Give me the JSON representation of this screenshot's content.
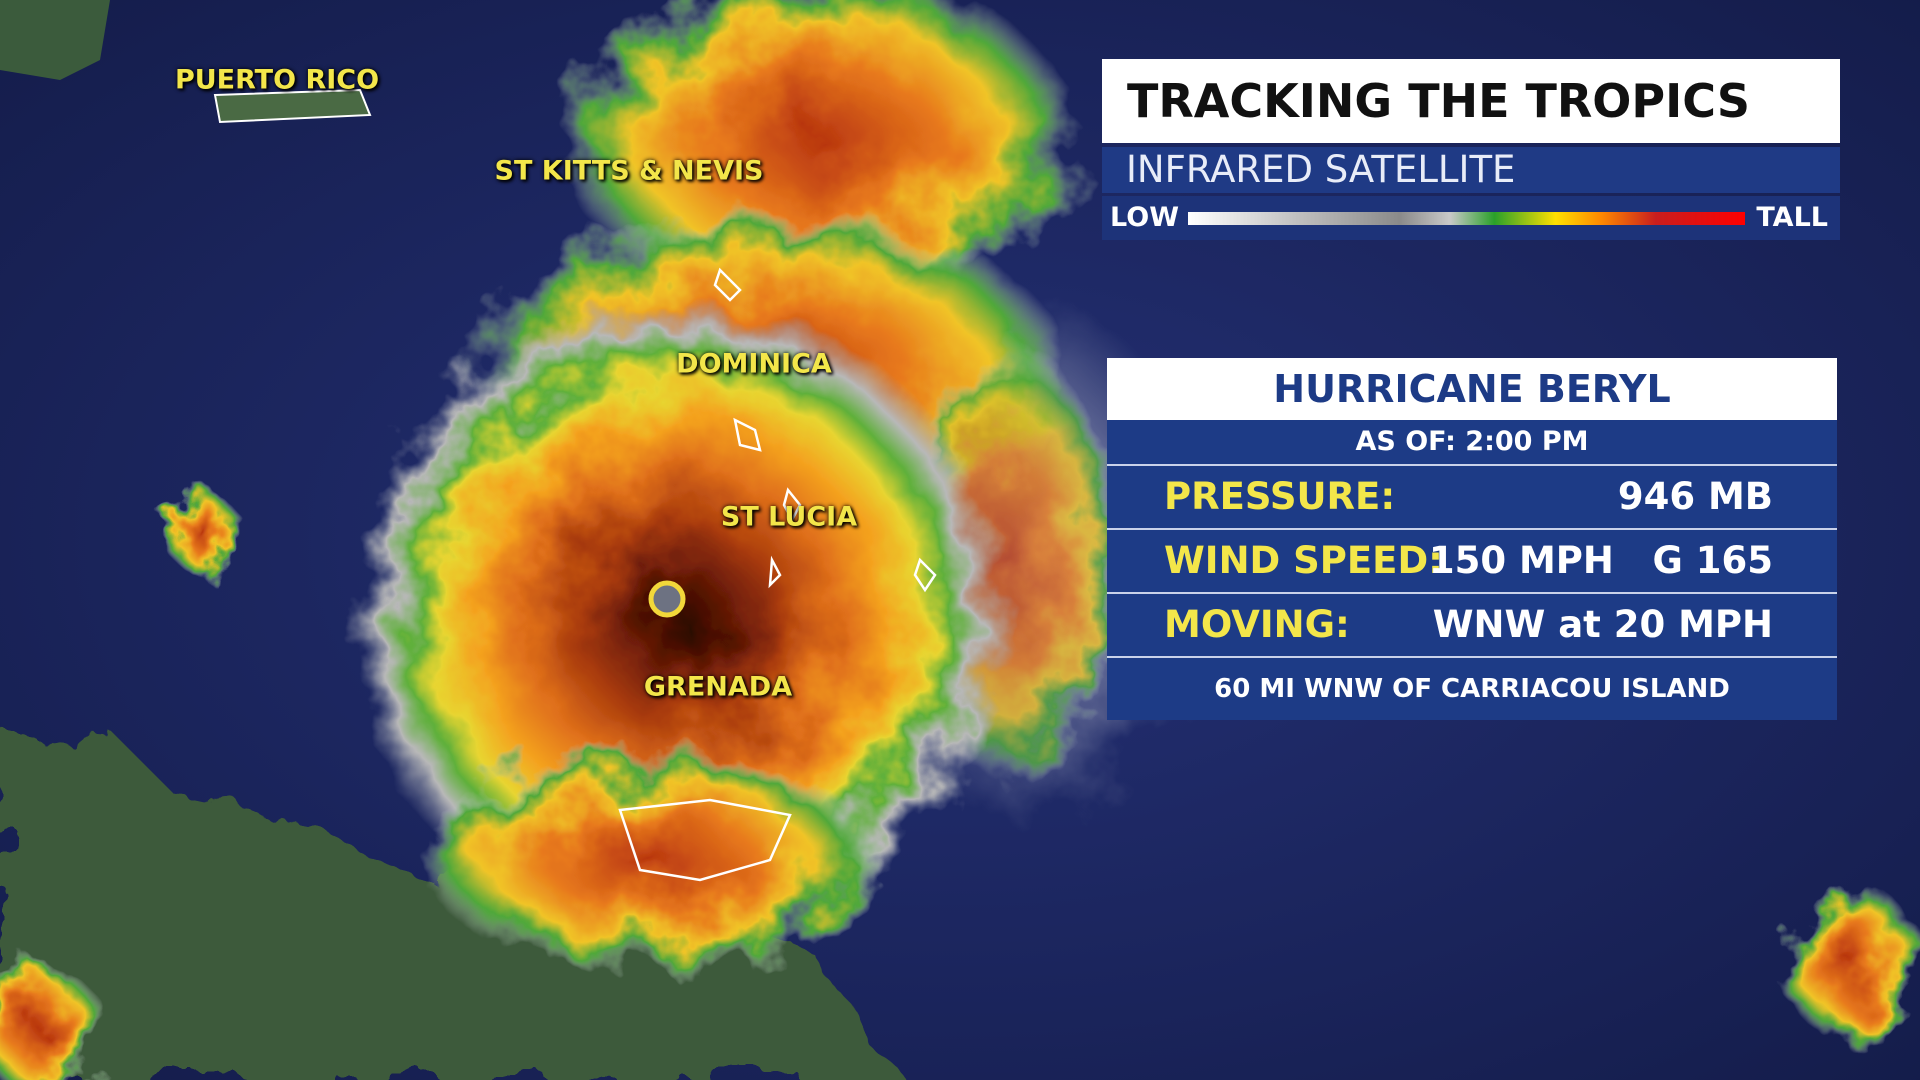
{
  "header": {
    "title": "TRACKING THE TROPICS",
    "subtitle": "INFRARED SATELLITE"
  },
  "legend": {
    "low": "LOW",
    "high": "TALL"
  },
  "map_labels": [
    "PUERTO RICO",
    "ST KITTS & NEVIS",
    "DOMINICA",
    "ST LUCIA",
    "GRENADA"
  ],
  "storm_panel": {
    "title": "HURRICANE BERYL",
    "as_of": "AS OF:  2:00 PM",
    "rows": [
      {
        "label": "PRESSURE:",
        "value": "946 MB"
      },
      {
        "label": "WIND SPEED:",
        "value": "150 MPH   G 165"
      },
      {
        "label": "MOVING:",
        "value": "WNW at 20 MPH"
      }
    ],
    "footer": "60 MI WNW OF CARRIACOU ISLAND"
  }
}
